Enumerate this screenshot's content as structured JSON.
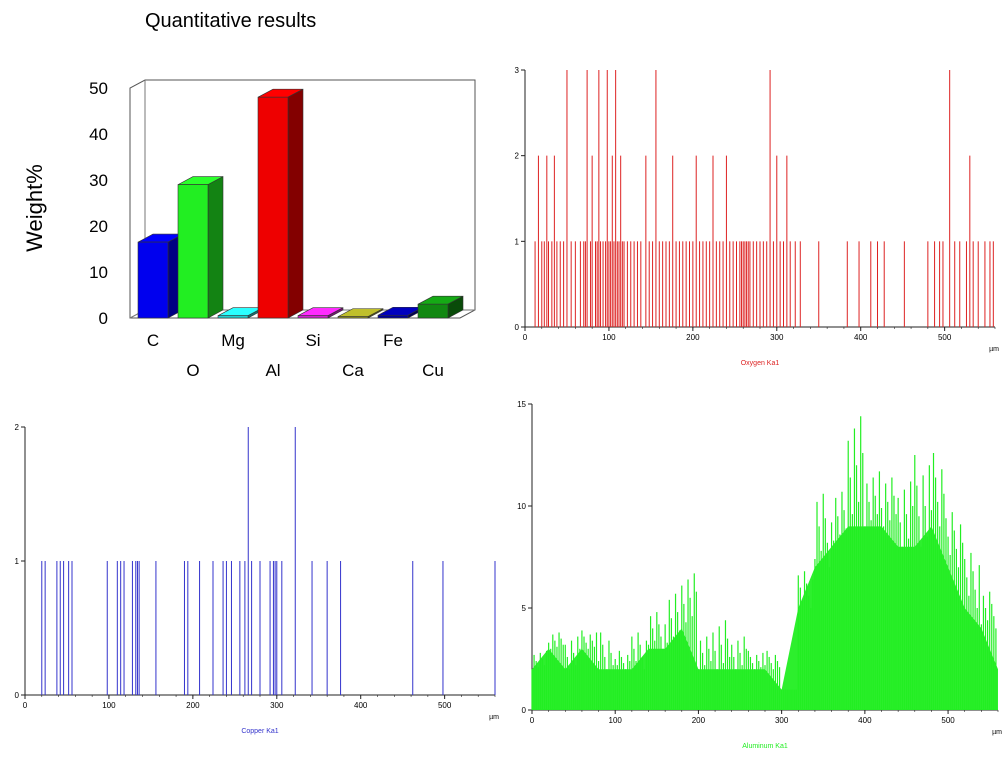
{
  "chart_data": [
    {
      "type": "bar",
      "title": "Quantitative results",
      "ylabel": "Weight%",
      "xlabel": "",
      "ylim": [
        0,
        50
      ],
      "yticks": [
        0,
        10,
        20,
        30,
        40,
        50
      ],
      "categories": [
        "C",
        "O",
        "Mg",
        "Al",
        "Si",
        "Ca",
        "Fe",
        "Cu"
      ],
      "values": [
        16.5,
        29.0,
        0.5,
        48.0,
        0.5,
        0.3,
        0.6,
        3.0
      ],
      "colors": [
        "#0000ee",
        "#22ee22",
        "#22cccc",
        "#ee0000",
        "#cc22cc",
        "#999922",
        "#000099",
        "#118811"
      ],
      "grid": false,
      "style": "3d"
    },
    {
      "type": "bar",
      "xlabel": "Oxygen Ka1",
      "xunit": "µm",
      "xlim": [
        0,
        560
      ],
      "ylim": [
        0,
        3
      ],
      "xticks": [
        0,
        100,
        200,
        300,
        400,
        500
      ],
      "yticks": [
        0,
        1,
        2,
        3
      ],
      "color": "#dd2222",
      "x": [
        12,
        16,
        20,
        23,
        26,
        28,
        32,
        35,
        38,
        42,
        46,
        50,
        55,
        60,
        66,
        70,
        72,
        74,
        78,
        80,
        84,
        86,
        88,
        90,
        93,
        96,
        98,
        100,
        102,
        104,
        106,
        108,
        110,
        112,
        114,
        116,
        118,
        122,
        126,
        130,
        134,
        138,
        144,
        148,
        152,
        156,
        160,
        164,
        168,
        172,
        176,
        180,
        184,
        188,
        192,
        196,
        200,
        204,
        208,
        212,
        216,
        220,
        224,
        228,
        232,
        236,
        240,
        244,
        248,
        252,
        256,
        258,
        260,
        262,
        264,
        266,
        268,
        272,
        276,
        280,
        284,
        288,
        292,
        296,
        300,
        304,
        308,
        312,
        316,
        322,
        328,
        350,
        384,
        398,
        412,
        420,
        428,
        452,
        480,
        488,
        494,
        498,
        506,
        512,
        518,
        526,
        530,
        534,
        540,
        548,
        554,
        558
      ],
      "y": [
        1,
        2,
        1,
        1,
        2,
        1,
        1,
        2,
        1,
        1,
        1,
        3,
        1,
        1,
        1,
        1,
        1,
        3,
        1,
        2,
        1,
        1,
        3,
        1,
        1,
        1,
        3,
        1,
        1,
        2,
        1,
        3,
        1,
        1,
        2,
        1,
        1,
        1,
        1,
        1,
        1,
        1,
        2,
        1,
        1,
        3,
        1,
        1,
        1,
        1,
        2,
        1,
        1,
        1,
        1,
        1,
        1,
        2,
        1,
        1,
        1,
        1,
        2,
        1,
        1,
        1,
        2,
        1,
        1,
        1,
        1,
        1,
        1,
        1,
        1,
        1,
        1,
        1,
        1,
        1,
        1,
        1,
        3,
        1,
        2,
        1,
        1,
        2,
        1,
        1,
        1,
        1,
        1,
        1,
        1,
        1,
        1,
        1,
        1,
        1,
        1,
        1,
        3,
        1,
        1,
        1,
        2,
        1,
        1,
        1,
        1,
        1
      ]
    },
    {
      "type": "bar",
      "xlabel": "Copper Ka1",
      "xunit": "µm",
      "xlim": [
        0,
        560
      ],
      "ylim": [
        0,
        2
      ],
      "xticks": [
        0,
        100,
        200,
        300,
        400,
        500
      ],
      "yticks": [
        0,
        1,
        2
      ],
      "color": "#3333cc",
      "x": [
        20,
        24,
        38,
        42,
        46,
        52,
        56,
        98,
        110,
        114,
        118,
        128,
        132,
        134,
        136,
        156,
        190,
        194,
        208,
        224,
        236,
        240,
        246,
        256,
        262,
        266,
        270,
        280,
        292,
        296,
        298,
        300,
        306,
        322,
        342,
        360,
        376,
        462,
        498,
        560
      ],
      "y": [
        1,
        1,
        1,
        1,
        1,
        1,
        1,
        1,
        1,
        1,
        1,
        1,
        1,
        1,
        1,
        1,
        1,
        1,
        1,
        1,
        1,
        1,
        1,
        1,
        1,
        2,
        1,
        1,
        1,
        1,
        1,
        1,
        1,
        2,
        1,
        1,
        1,
        1,
        1,
        1
      ]
    },
    {
      "type": "area",
      "xlabel": "Aluminum Ka1",
      "xunit": "µm",
      "xlim": [
        0,
        560
      ],
      "ylim": [
        0,
        15
      ],
      "xticks": [
        0,
        100,
        200,
        300,
        400,
        500
      ],
      "yticks": [
        0,
        5,
        10,
        15
      ],
      "color": "#22ee22",
      "x": [
        0,
        20,
        40,
        60,
        80,
        100,
        120,
        140,
        160,
        180,
        200,
        220,
        240,
        260,
        280,
        300,
        320,
        340,
        360,
        380,
        400,
        420,
        440,
        460,
        480,
        500,
        520,
        540,
        560
      ],
      "y": [
        2,
        3,
        2,
        3,
        2,
        2,
        2,
        3,
        3,
        4,
        2,
        2,
        2,
        2,
        2,
        1,
        5,
        7,
        8,
        9,
        9,
        9,
        8,
        8,
        9,
        7,
        5,
        4,
        2
      ],
      "peak_y": [
        3,
        4,
        4,
        4,
        4,
        3,
        4,
        5,
        6,
        7,
        4,
        5,
        4,
        3,
        3,
        1,
        7,
        11,
        11,
        15,
        12,
        12,
        12,
        13,
        13,
        10,
        8,
        6,
        4
      ]
    }
  ]
}
